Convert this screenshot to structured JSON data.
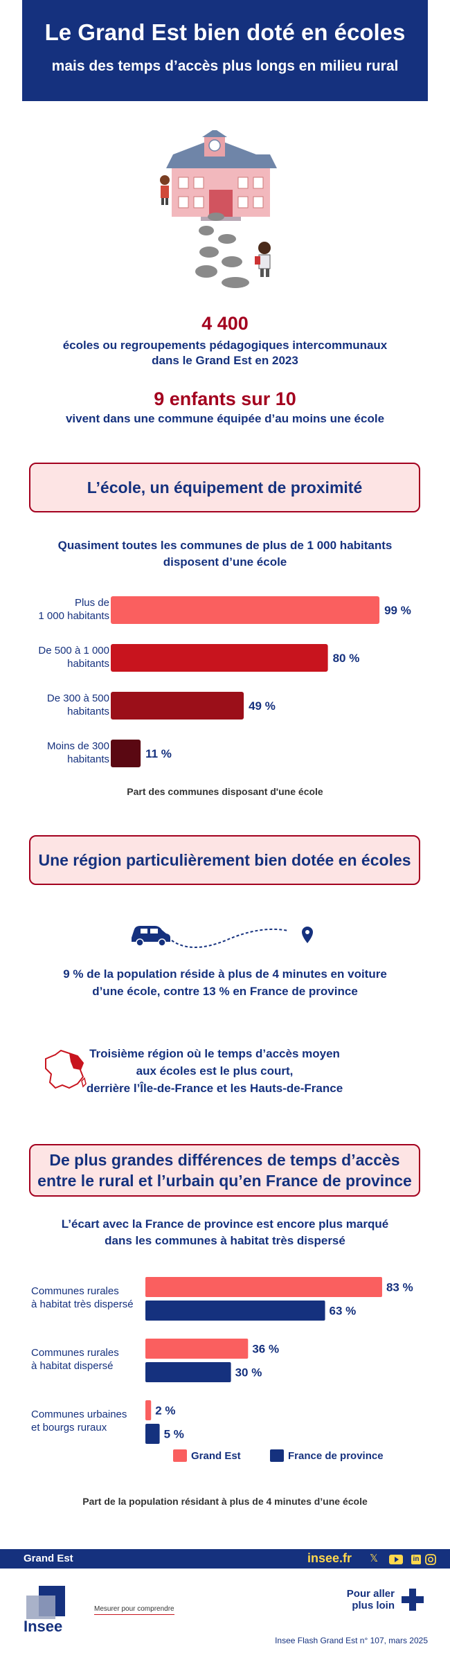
{
  "header": {
    "title": "Le Grand Est bien doté en écoles",
    "subtitle": "mais des temps d’accès plus longs en milieu rural"
  },
  "stats": {
    "schools_number": "4 400",
    "schools_text_1": "écoles ou regroupements pédagogiques intercommunaux",
    "schools_text_2": "dans le Grand Est en 2023",
    "children_number": "9 enfants sur 10",
    "children_text": "vivent dans une commune équipée d’au moins une école"
  },
  "section1": {
    "title": "L’école, un équipement de proximité",
    "subtitle_1": "Quasiment toutes les communes de plus de 1 000 habitants",
    "subtitle_2": "disposent d’une école",
    "caption": "Part des communes disposant d'une école"
  },
  "section2": {
    "title": "Une région particulièrement bien dotée en écoles",
    "fact1_1": "9 % de la population réside à plus de 4 minutes en voiture",
    "fact1_2": "d’une école, contre 13 % en France de province",
    "fact2_1": "Troisième région où le temps d’accès moyen",
    "fact2_2": "aux écoles est le plus court,",
    "fact2_3": "derrière l’Île-de-France et les Hauts-de-France"
  },
  "section3": {
    "title_1": "De plus grandes différences de temps d’accès",
    "title_2": "entre le rural et l’urbain qu’en France de province",
    "subtitle_1": "L’écart avec la France de province est encore plus marqué",
    "subtitle_2": "dans les communes à habitat très dispersé",
    "caption": "Part de la population résidant à plus de 4 minutes d’une école"
  },
  "footer": {
    "region": "Grand Est",
    "site": "insee.fr",
    "pour_aller_1": "Pour aller",
    "pour_aller_2": "plus loin",
    "logo_text": "Insee",
    "tagline": "Mesurer pour comprendre",
    "publication": "Insee Flash Grand Est n° 107, mars 2025",
    "social_x": "𝕏",
    "social_in": "in"
  },
  "colors": {
    "navy": "#15317e",
    "red_dark": "#a3001e",
    "salmon": "#fa5f5f",
    "crimson": "#c8141e",
    "bordeaux": "#9b0f19",
    "maroon": "#5a0812",
    "light_pink": "#fde4e4"
  },
  "chart_data": [
    {
      "type": "bar",
      "orientation": "horizontal",
      "categories": [
        [
          "Plus de",
          "1 000 habitants"
        ],
        [
          "De 500 à 1 000",
          "habitants"
        ],
        [
          "De 300 à 500",
          "habitants"
        ],
        [
          "Moins de 300",
          "habitants"
        ]
      ],
      "values": [
        99,
        80,
        49,
        11
      ],
      "value_labels": [
        "99 %",
        "80 %",
        "49 %",
        "11 %"
      ],
      "bar_colors": [
        "#fa5f5f",
        "#c8141e",
        "#9b0f19",
        "#5a0812"
      ],
      "xlim": [
        0,
        100
      ],
      "title": "Quasiment toutes les communes de plus de 1 000 habitants disposent d’une école",
      "xlabel": "Part des communes disposant d'une école"
    },
    {
      "type": "bar",
      "orientation": "horizontal",
      "categories": [
        [
          "Communes rurales",
          "à habitat très dispersé"
        ],
        [
          "Communes rurales",
          "à habitat dispersé"
        ],
        [
          "Communes urbaines",
          "et bourgs ruraux"
        ]
      ],
      "series": [
        {
          "name": "Grand Est",
          "color": "#fa5f5f",
          "values": [
            83,
            36,
            2
          ],
          "labels": [
            "83 %",
            "36 %",
            "2 %"
          ]
        },
        {
          "name": "France de province",
          "color": "#15317e",
          "values": [
            63,
            30,
            5
          ],
          "labels": [
            "63 %",
            "30 %",
            "5 %"
          ]
        }
      ],
      "xlim": [
        0,
        100
      ],
      "legend": "bottom",
      "title": "L’écart avec la France de province est encore plus marqué dans les communes à habitat très dispersé",
      "xlabel": "Part de la population résidant à plus de 4 minutes d’une école"
    }
  ]
}
